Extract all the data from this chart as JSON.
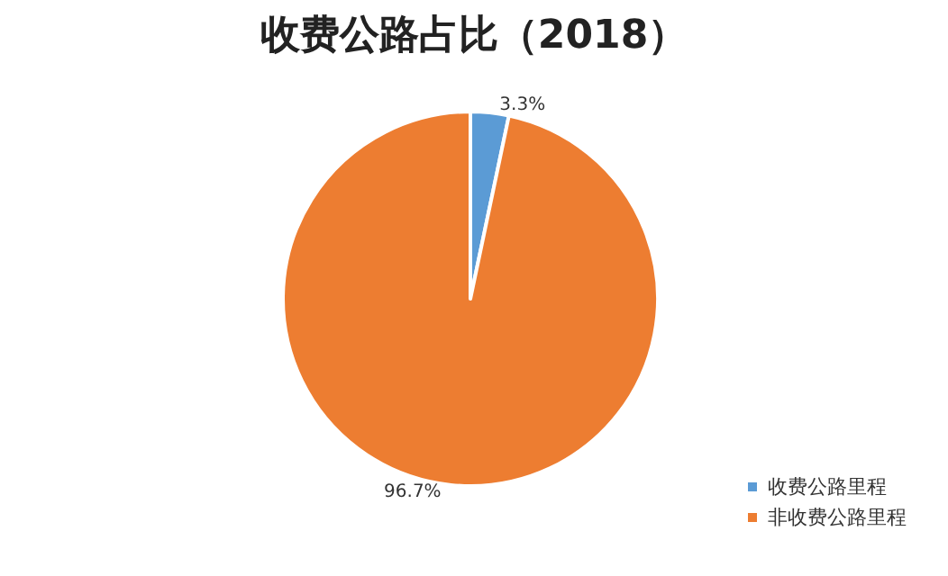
{
  "chart_data": {
    "type": "pie",
    "title": "收费公路占比（2018）",
    "categories": [
      "收费公路里程",
      "非收费公路里程"
    ],
    "values": [
      3.3,
      96.7
    ],
    "colors": [
      "#5b9bd5",
      "#ed7d31"
    ],
    "value_labels": [
      "3.3%",
      "96.7%"
    ],
    "legend": "bottom right"
  }
}
